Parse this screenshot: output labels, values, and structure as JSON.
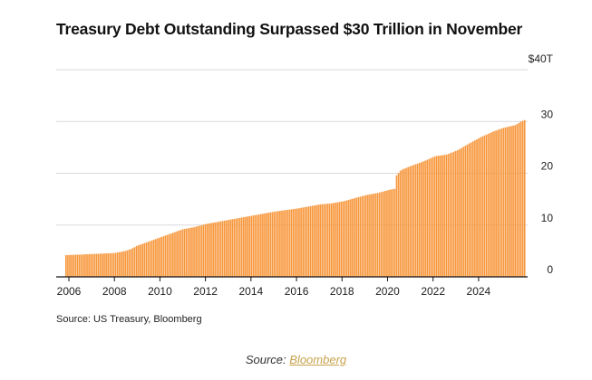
{
  "chart_data": {
    "type": "bar",
    "title": "Treasury Debt Outstanding Surpassed $30 Trillion in November",
    "xlabel": "",
    "ylabel": "",
    "ylim": [
      0,
      40
    ],
    "y_ticks": [
      {
        "value": 0,
        "label": "0"
      },
      {
        "value": 10,
        "label": "10"
      },
      {
        "value": 20,
        "label": "20"
      },
      {
        "value": 30,
        "label": "30"
      },
      {
        "value": 40,
        "label": "$40T"
      }
    ],
    "x_ticks": [
      "2006",
      "2008",
      "2010",
      "2012",
      "2014",
      "2016",
      "2018",
      "2020",
      "2022",
      "2024"
    ],
    "x_range": [
      2005.9,
      2025.92
    ],
    "grid": true,
    "bar_color": "#f7963a",
    "anchors": [
      [
        2005.9,
        4.2
      ],
      [
        2006.5,
        4.3
      ],
      [
        2007.0,
        4.4
      ],
      [
        2007.5,
        4.5
      ],
      [
        2008.0,
        4.6
      ],
      [
        2008.5,
        5.0
      ],
      [
        2008.75,
        5.4
      ],
      [
        2009.0,
        6.0
      ],
      [
        2009.5,
        6.8
      ],
      [
        2010.0,
        7.6
      ],
      [
        2010.5,
        8.4
      ],
      [
        2011.0,
        9.2
      ],
      [
        2011.5,
        9.6
      ],
      [
        2012.0,
        10.2
      ],
      [
        2012.5,
        10.6
      ],
      [
        2013.0,
        11.0
      ],
      [
        2013.5,
        11.4
      ],
      [
        2014.0,
        11.8
      ],
      [
        2014.5,
        12.2
      ],
      [
        2015.0,
        12.6
      ],
      [
        2015.5,
        12.9
      ],
      [
        2016.0,
        13.2
      ],
      [
        2016.5,
        13.6
      ],
      [
        2017.0,
        14.0
      ],
      [
        2017.5,
        14.2
      ],
      [
        2018.0,
        14.6
      ],
      [
        2018.5,
        15.2
      ],
      [
        2019.0,
        15.8
      ],
      [
        2019.5,
        16.2
      ],
      [
        2020.0,
        16.8
      ],
      [
        2020.25,
        17.0
      ],
      [
        2020.3,
        19.5
      ],
      [
        2020.5,
        20.6
      ],
      [
        2021.0,
        21.5
      ],
      [
        2021.5,
        22.3
      ],
      [
        2022.0,
        23.3
      ],
      [
        2022.5,
        23.6
      ],
      [
        2023.0,
        24.5
      ],
      [
        2023.5,
        25.8
      ],
      [
        2024.0,
        27.0
      ],
      [
        2024.5,
        28.0
      ],
      [
        2025.0,
        28.8
      ],
      [
        2025.5,
        29.3
      ],
      [
        2025.75,
        30.0
      ],
      [
        2025.92,
        30.3
      ]
    ]
  },
  "source_note": "Source: US Treasury, Bloomberg",
  "caption": {
    "prefix": "Source: ",
    "link_text": "Bloomberg"
  }
}
